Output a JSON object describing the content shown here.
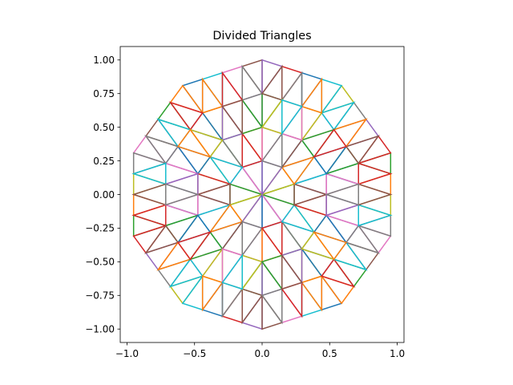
{
  "chart_data": {
    "type": "line",
    "title": "Divided Triangles",
    "xlabel": "",
    "ylabel": "",
    "xlim": [
      -1.05,
      1.05
    ],
    "ylim": [
      -1.1,
      1.1
    ],
    "x_ticks": [
      -1.0,
      -0.5,
      0.0,
      0.5,
      1.0
    ],
    "y_ticks": [
      -1.0,
      -0.75,
      -0.5,
      -0.25,
      0.0,
      0.25,
      0.5,
      0.75,
      1.0
    ],
    "x_tick_labels": [
      "−1.0",
      "−0.5",
      "0.0",
      "0.5",
      "1.0"
    ],
    "y_tick_labels": [
      "−1.00",
      "−0.75",
      "−0.50",
      "−0.25",
      "0.00",
      "0.25",
      "0.50",
      "0.75",
      "1.00"
    ],
    "grid": false,
    "aspect": "equal",
    "structure": {
      "outer_polygon_sides": 10,
      "outer_radius": 1.0,
      "center": [
        0.0,
        0.0
      ],
      "subdivision": "each triangle (center, v_i, v_i+1) split into 4 via edge midpoints, recursively 2 levels"
    },
    "colors": [
      "#1f77b4",
      "#ff7f0e",
      "#2ca02c",
      "#d62728",
      "#9467bd",
      "#8c564b",
      "#e377c2",
      "#7f7f7f",
      "#bcbd22",
      "#17becf"
    ]
  }
}
